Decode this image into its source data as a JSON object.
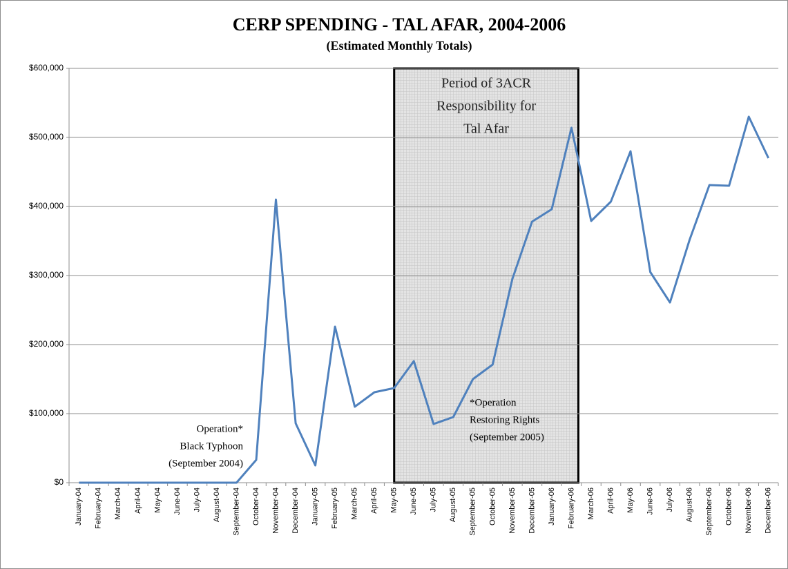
{
  "chart_data": {
    "type": "line",
    "title": "CERP SPENDING - TAL AFAR, 2004-2006",
    "subtitle": "(Estimated Monthly Totals)",
    "categories": [
      "January-04",
      "February-04",
      "March-04",
      "April-04",
      "May-04",
      "June-04",
      "July-04",
      "August-04",
      "September-04",
      "October-04",
      "November-04",
      "December-04",
      "January-05",
      "February-05",
      "March-05",
      "April-05",
      "May-05",
      "June-05",
      "July-05",
      "August-05",
      "September-05",
      "October-05",
      "November-05",
      "December-05",
      "January-06",
      "February-06",
      "March-06",
      "April-06",
      "May-06",
      "June-06",
      "July-06",
      "August-06",
      "September-06",
      "October-06",
      "November-06",
      "December-06"
    ],
    "series": [
      {
        "name": "CERP Spending",
        "color": "#4f81bd",
        "values": [
          0,
          0,
          0,
          0,
          0,
          0,
          0,
          0,
          0,
          33000,
          410000,
          86000,
          25000,
          226000,
          110000,
          131000,
          137000,
          176000,
          85000,
          95000,
          150000,
          171000,
          295000,
          378000,
          396000,
          514000,
          379000,
          407000,
          480000,
          305000,
          261000,
          352000,
          431000,
          430000,
          530000,
          470000
        ]
      }
    ],
    "ylim": [
      0,
      600000
    ],
    "yticks": [
      {
        "value": 0,
        "label": "$0"
      },
      {
        "value": 100000,
        "label": "$100,000"
      },
      {
        "value": 200000,
        "label": "$200,000"
      },
      {
        "value": 300000,
        "label": "$300,000"
      },
      {
        "value": 400000,
        "label": "$400,000"
      },
      {
        "value": 500000,
        "label": "$500,000"
      },
      {
        "value": 600000,
        "label": "$600,000"
      }
    ],
    "grid": true,
    "annotations": [
      {
        "lines": [
          "Period of 3ACR",
          "Responsibility for",
          "Tal Afar"
        ]
      },
      {
        "lines": [
          "Operation*",
          "Black Typhoon",
          "(September 2004)"
        ]
      },
      {
        "lines": [
          "*Operation",
          "Restoring Rights",
          "(September 2005)"
        ]
      }
    ]
  }
}
